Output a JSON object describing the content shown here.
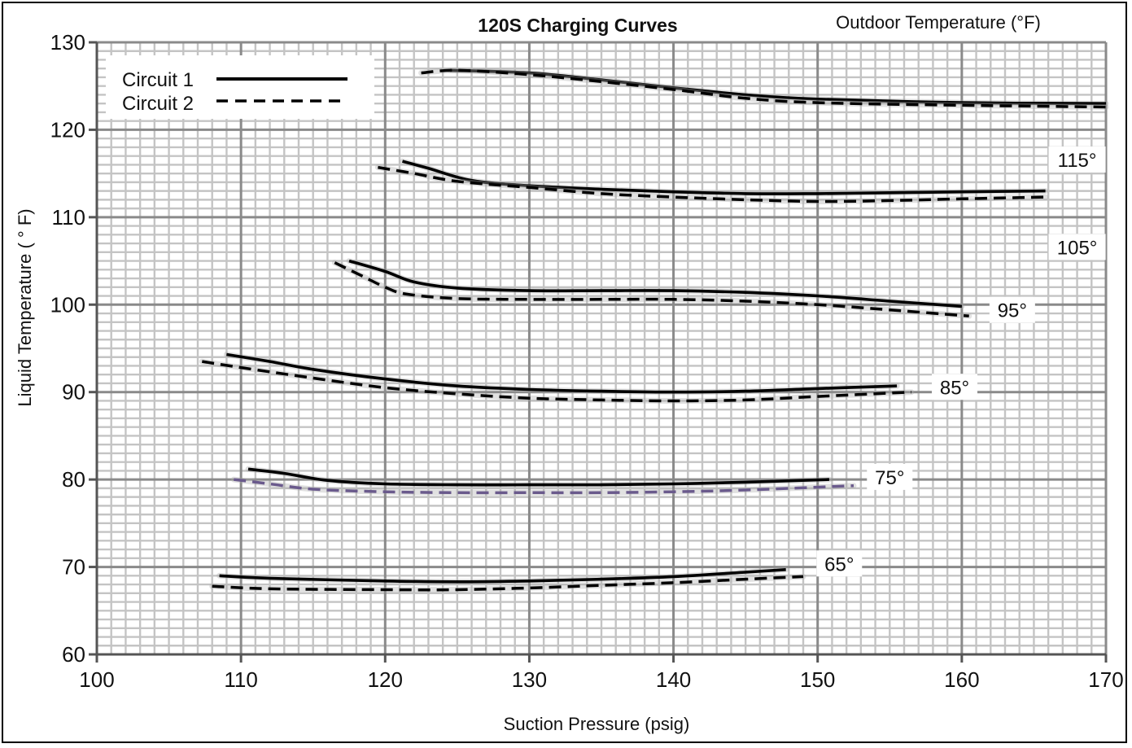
{
  "chart_data": {
    "type": "line",
    "title": "120S Charging Curves",
    "legend_title": "Outdoor Temperature (°F)",
    "xlabel": "Suction Pressure (psig)",
    "ylabel": "Liquid Temperature ( ° F)",
    "xlim": [
      100,
      170
    ],
    "ylim": [
      60,
      130
    ],
    "xticks": [
      100,
      110,
      120,
      130,
      140,
      150,
      160,
      170
    ],
    "yticks": [
      60,
      70,
      80,
      90,
      100,
      110,
      120,
      130
    ],
    "grid": true,
    "legend_position": "top-left",
    "legend": [
      {
        "name": "Circuit 1",
        "style": "solid"
      },
      {
        "name": "Circuit 2",
        "style": "dashed"
      }
    ],
    "curve_labels": [
      {
        "text": "115°",
        "x": 168,
        "y": 116.6
      },
      {
        "text": "105°",
        "x": 168,
        "y": 106.6
      },
      {
        "text": "95°",
        "x": 163.5,
        "y": 99.4
      },
      {
        "text": "85°",
        "x": 159.5,
        "y": 90.6
      },
      {
        "text": "75°",
        "x": 155,
        "y": 80.3
      },
      {
        "text": "65°",
        "x": 151.5,
        "y": 70.4
      }
    ],
    "series": [
      {
        "circuit": "Circuit 1",
        "outdoor_temp": "115°",
        "style": "solid",
        "color": "#000000",
        "points": [
          [
            124.5,
            126.8
          ],
          [
            130,
            126.5
          ],
          [
            135,
            125.7
          ],
          [
            140,
            124.8
          ],
          [
            145,
            124
          ],
          [
            150,
            123.5
          ],
          [
            160,
            123.1
          ],
          [
            170,
            123
          ]
        ]
      },
      {
        "circuit": "Circuit 2",
        "outdoor_temp": "115°",
        "style": "dashed",
        "color": "#000000",
        "points": [
          [
            122.5,
            126.5
          ],
          [
            125,
            126.8
          ],
          [
            130,
            126.3
          ],
          [
            135,
            125.5
          ],
          [
            140,
            124.6
          ],
          [
            145,
            123.6
          ],
          [
            150,
            123.1
          ],
          [
            160,
            122.8
          ],
          [
            170,
            122.6
          ]
        ]
      },
      {
        "circuit": "Circuit 1",
        "outdoor_temp": "105°",
        "style": "solid",
        "color": "#000000",
        "points": [
          [
            121.2,
            116.4
          ],
          [
            123,
            115.6
          ],
          [
            126,
            114.2
          ],
          [
            130,
            113.6
          ],
          [
            135,
            113.2
          ],
          [
            140,
            112.9
          ],
          [
            145,
            112.7
          ],
          [
            150,
            112.7
          ],
          [
            155,
            112.8
          ],
          [
            160,
            112.9
          ],
          [
            165.8,
            113
          ]
        ]
      },
      {
        "circuit": "Circuit 2",
        "outdoor_temp": "105°",
        "style": "dashed",
        "color": "#000000",
        "points": [
          [
            119.5,
            115.7
          ],
          [
            122,
            115
          ],
          [
            125,
            114.1
          ],
          [
            130,
            113.4
          ],
          [
            135,
            112.7
          ],
          [
            140,
            112.3
          ],
          [
            145,
            112
          ],
          [
            150,
            111.8
          ],
          [
            155,
            111.9
          ],
          [
            160,
            112.1
          ],
          [
            165.8,
            112.3
          ]
        ]
      },
      {
        "circuit": "Circuit 1",
        "outdoor_temp": "95°",
        "style": "solid",
        "color": "#000000",
        "points": [
          [
            117.5,
            105
          ],
          [
            120,
            103.8
          ],
          [
            122,
            102.6
          ],
          [
            125,
            101.9
          ],
          [
            130,
            101.6
          ],
          [
            135,
            101.6
          ],
          [
            140,
            101.6
          ],
          [
            145,
            101.4
          ],
          [
            150,
            101
          ],
          [
            155,
            100.4
          ],
          [
            160,
            99.8
          ]
        ]
      },
      {
        "circuit": "Circuit 2",
        "outdoor_temp": "95°",
        "style": "dashed",
        "color": "#000000",
        "points": [
          [
            116.5,
            104.8
          ],
          [
            118.5,
            103.2
          ],
          [
            120,
            102
          ],
          [
            121.5,
            101.2
          ],
          [
            125,
            100.7
          ],
          [
            130,
            100.6
          ],
          [
            135,
            100.6
          ],
          [
            140,
            100.6
          ],
          [
            145,
            100.4
          ],
          [
            150,
            100
          ],
          [
            155,
            99.4
          ],
          [
            160.5,
            98.7
          ]
        ]
      },
      {
        "circuit": "Circuit 1",
        "outdoor_temp": "85°",
        "style": "solid",
        "color": "#000000",
        "points": [
          [
            109,
            94.3
          ],
          [
            112,
            93.5
          ],
          [
            115,
            92.6
          ],
          [
            120,
            91.5
          ],
          [
            125,
            90.7
          ],
          [
            130,
            90.3
          ],
          [
            135,
            90.1
          ],
          [
            140,
            90
          ],
          [
            145,
            90.1
          ],
          [
            150,
            90.4
          ],
          [
            155.5,
            90.7
          ]
        ]
      },
      {
        "circuit": "Circuit 2",
        "outdoor_temp": "85°",
        "style": "dashed",
        "color": "#000000",
        "points": [
          [
            107.3,
            93.5
          ],
          [
            110,
            92.8
          ],
          [
            115,
            91.6
          ],
          [
            120,
            90.5
          ],
          [
            125,
            89.8
          ],
          [
            130,
            89.3
          ],
          [
            135,
            89.1
          ],
          [
            140,
            89
          ],
          [
            145,
            89.1
          ],
          [
            150,
            89.5
          ],
          [
            156.5,
            90
          ]
        ]
      },
      {
        "circuit": "Circuit 1",
        "outdoor_temp": "75°",
        "style": "solid",
        "color": "#000000",
        "points": [
          [
            110.5,
            81.2
          ],
          [
            113,
            80.7
          ],
          [
            116,
            79.9
          ],
          [
            120,
            79.5
          ],
          [
            125,
            79.4
          ],
          [
            130,
            79.4
          ],
          [
            135,
            79.4
          ],
          [
            140,
            79.5
          ],
          [
            145,
            79.7
          ],
          [
            150.8,
            80
          ]
        ]
      },
      {
        "circuit": "Circuit 2",
        "outdoor_temp": "75°",
        "style": "dashed",
        "color": "#6a5a8c",
        "points": [
          [
            109.5,
            80
          ],
          [
            112,
            79.5
          ],
          [
            115,
            78.9
          ],
          [
            120,
            78.6
          ],
          [
            125,
            78.5
          ],
          [
            130,
            78.5
          ],
          [
            135,
            78.5
          ],
          [
            140,
            78.6
          ],
          [
            145,
            78.8
          ],
          [
            152.5,
            79.3
          ]
        ]
      },
      {
        "circuit": "Circuit 1",
        "outdoor_temp": "65°",
        "style": "solid",
        "color": "#000000",
        "points": [
          [
            108.5,
            69
          ],
          [
            112,
            68.7
          ],
          [
            120,
            68.4
          ],
          [
            125,
            68.3
          ],
          [
            130,
            68.4
          ],
          [
            135,
            68.6
          ],
          [
            140,
            68.9
          ],
          [
            145,
            69.4
          ],
          [
            147.8,
            69.7
          ]
        ]
      },
      {
        "circuit": "Circuit 2",
        "outdoor_temp": "65°",
        "style": "dashed",
        "color": "#000000",
        "points": [
          [
            108,
            67.8
          ],
          [
            112,
            67.5
          ],
          [
            120,
            67.4
          ],
          [
            125,
            67.4
          ],
          [
            130,
            67.6
          ],
          [
            135,
            67.9
          ],
          [
            140,
            68.2
          ],
          [
            145,
            68.6
          ],
          [
            149,
            68.9
          ]
        ]
      }
    ]
  }
}
